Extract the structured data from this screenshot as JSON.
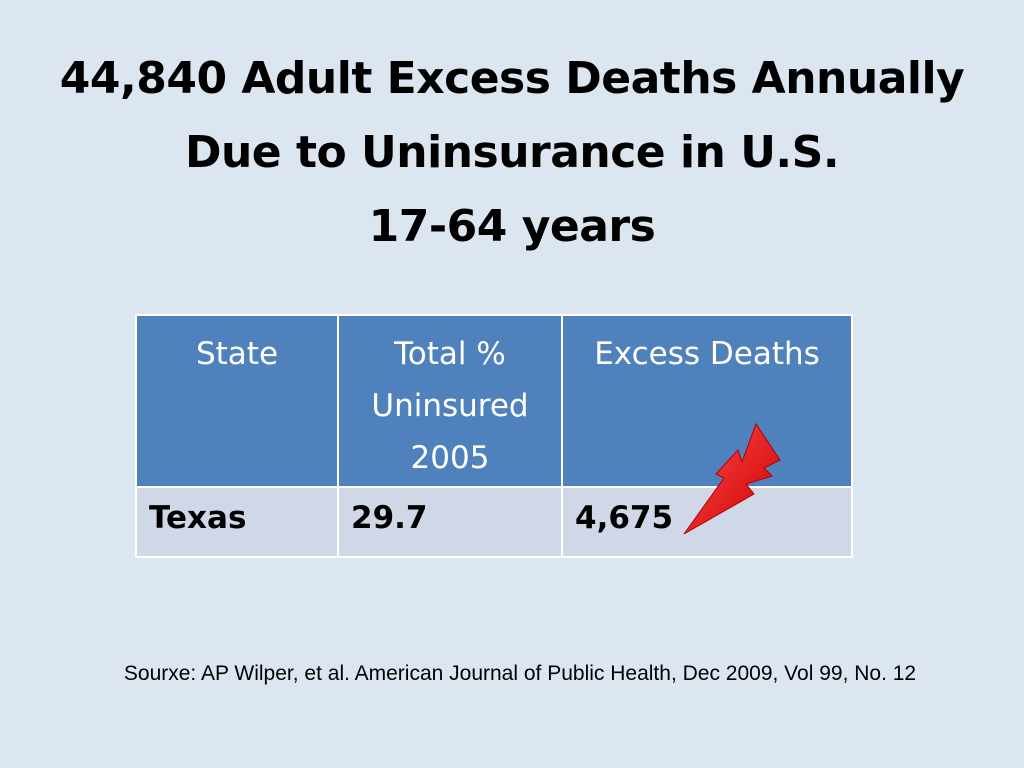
{
  "slide": {
    "title_lines": [
      "44,840 Adult Excess Deaths Annually",
      "Due to Uninsurance in U.S.",
      "17-64 years"
    ],
    "source": "Sourxe: AP Wilper, et al. American Journal of Public Health, Dec 2009, Vol 99, No. 12"
  },
  "table": {
    "headers": [
      [
        "State"
      ],
      [
        "Total %",
        "Uninsured",
        "2005"
      ],
      [
        "Excess Deaths"
      ]
    ],
    "rows": [
      [
        "Texas",
        "29.7",
        "4,675"
      ]
    ]
  },
  "colors": {
    "background": "#dce6f1",
    "header_fill": "#4f81bd",
    "row_fill": "#d0d8e8",
    "lightning": "#ff0000"
  },
  "icons": {
    "lightning": "lightning-bolt-icon"
  }
}
